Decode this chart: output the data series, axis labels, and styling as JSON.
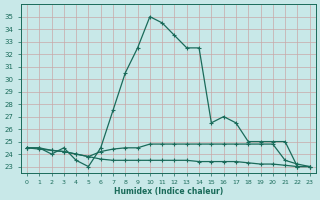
{
  "xlabel": "Humidex (Indice chaleur)",
  "ylabel": "",
  "background_color": "#c8e8e8",
  "grid_color": "#c8a8a8",
  "line_color": "#1a6b5a",
  "xlim": [
    -0.5,
    23.5
  ],
  "ylim": [
    22.5,
    36.0
  ],
  "xticks": [
    0,
    1,
    2,
    3,
    4,
    5,
    6,
    7,
    8,
    9,
    10,
    11,
    12,
    13,
    14,
    15,
    16,
    17,
    18,
    19,
    20,
    21,
    22,
    23
  ],
  "yticks": [
    23,
    24,
    25,
    26,
    27,
    28,
    29,
    30,
    31,
    32,
    33,
    34,
    35
  ],
  "series_bell": {
    "x": [
      0,
      1,
      2,
      3,
      4,
      5,
      6,
      7,
      8,
      9,
      10,
      11,
      12,
      13,
      14,
      15,
      16,
      17,
      18,
      19,
      20,
      21,
      22,
      23
    ],
    "y": [
      24.5,
      24.5,
      24.0,
      24.5,
      23.5,
      23.0,
      24.5,
      27.5,
      30.5,
      32.5,
      35.0,
      34.5,
      33.5,
      32.5,
      32.5,
      26.5,
      27.0,
      26.5,
      25.0,
      25.0,
      25.0,
      25.0,
      23.0,
      23.0
    ]
  },
  "series_flat1": {
    "x": [
      0,
      1,
      2,
      3,
      4,
      5,
      6,
      7,
      8,
      9,
      10,
      11,
      12,
      13,
      14,
      15,
      16,
      17,
      18,
      19,
      20,
      21,
      22,
      23
    ],
    "y": [
      24.5,
      24.5,
      24.3,
      24.2,
      24.0,
      23.8,
      24.2,
      24.4,
      24.5,
      24.5,
      24.8,
      24.8,
      24.8,
      24.8,
      24.8,
      24.8,
      24.8,
      24.8,
      24.8,
      24.8,
      24.8,
      23.5,
      23.2,
      23.0
    ]
  },
  "series_flat2": {
    "x": [
      0,
      1,
      2,
      3,
      4,
      5,
      6,
      7,
      8,
      9,
      10,
      11,
      12,
      13,
      14,
      15,
      16,
      17,
      18,
      19,
      20,
      21,
      22,
      23
    ],
    "y": [
      24.5,
      24.4,
      24.3,
      24.2,
      24.0,
      23.8,
      23.6,
      23.5,
      23.5,
      23.5,
      23.5,
      23.5,
      23.5,
      23.5,
      23.4,
      23.4,
      23.4,
      23.4,
      23.3,
      23.2,
      23.2,
      23.1,
      23.0,
      23.0
    ]
  }
}
